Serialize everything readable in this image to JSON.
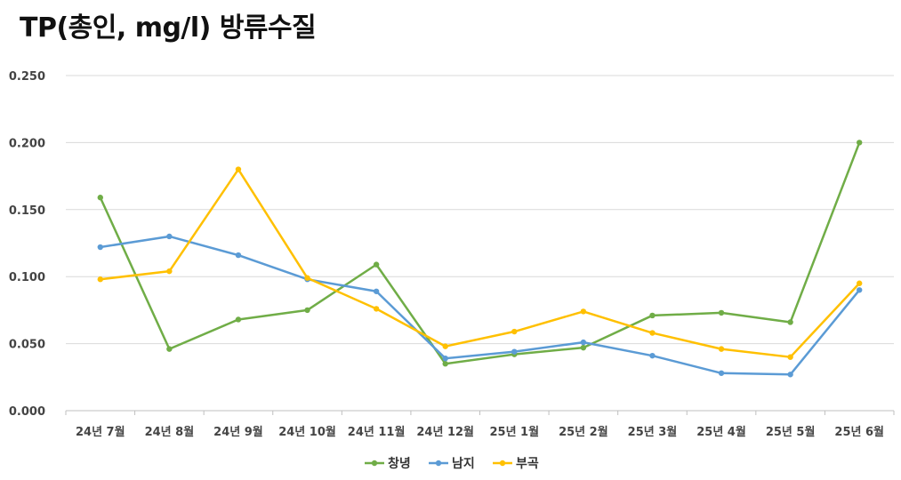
{
  "title": "TP(총인, mg/l) 방류수질",
  "chart_data": {
    "type": "line",
    "title": "TP(총인, mg/l) 방류수질",
    "categories": [
      "24년 7월",
      "24년 8월",
      "24년 9월",
      "24년 10월",
      "24년 11월",
      "24년 12월",
      "25년 1월",
      "25년 2월",
      "25년 3월",
      "25년 4월",
      "25년 5월",
      "25년 6월"
    ],
    "ylim": [
      0,
      0.25
    ],
    "yticks": [
      "0.000",
      "0.050",
      "0.100",
      "0.150",
      "0.200",
      "0.250"
    ],
    "grid": true,
    "legend": "bottom",
    "series": [
      {
        "name": "창녕",
        "color": "#70ad47",
        "values": [
          0.159,
          0.046,
          0.068,
          0.075,
          0.109,
          0.035,
          0.042,
          0.047,
          0.071,
          0.073,
          0.066,
          0.2
        ]
      },
      {
        "name": "남지",
        "color": "#5b9bd5",
        "values": [
          0.122,
          0.13,
          0.116,
          0.098,
          0.089,
          0.039,
          0.044,
          0.051,
          0.041,
          0.028,
          0.027,
          0.09
        ]
      },
      {
        "name": "부곡",
        "color": "#ffc000",
        "values": [
          0.098,
          0.104,
          0.18,
          0.099,
          0.076,
          0.048,
          0.059,
          0.074,
          0.058,
          0.046,
          0.04,
          0.095
        ]
      }
    ]
  }
}
